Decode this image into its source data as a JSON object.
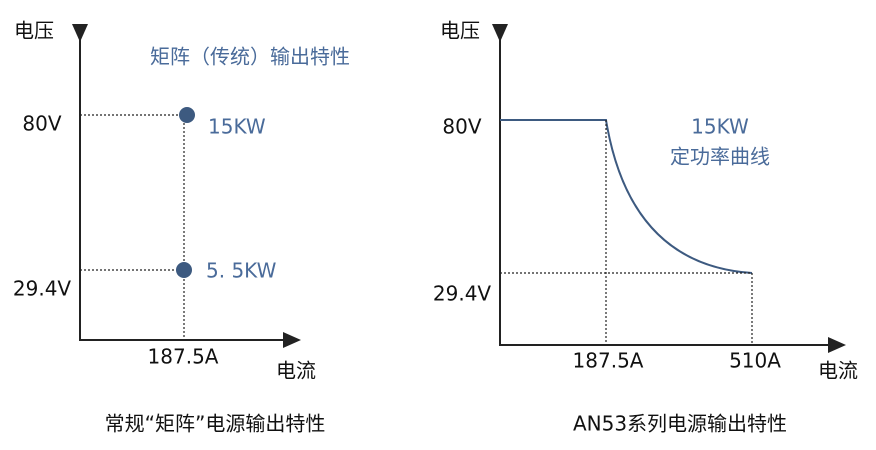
{
  "left": {
    "y_axis_label": "电压",
    "x_axis_label": "电流",
    "title": "矩阵（传统）输出特性",
    "y_labels": [
      "80V",
      "29.4V"
    ],
    "x_labels": [
      "187.5A"
    ],
    "points": [
      "15KW",
      "5. 5KW"
    ],
    "caption": "常规“矩阵”电源输出特性"
  },
  "right": {
    "y_axis_label": "电压",
    "x_axis_label": "电流",
    "y_labels": [
      "80V",
      "29.4V"
    ],
    "x_labels": [
      "187.5A",
      "510A"
    ],
    "curve_labels": [
      "15KW",
      "定功率曲线"
    ],
    "caption": "AN53系列电源输出特性"
  }
}
